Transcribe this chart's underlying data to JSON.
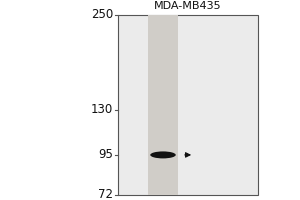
{
  "title": "MDA-MB435",
  "mw_markers": [
    250,
    130,
    95,
    72
  ],
  "band_mw": 95,
  "outer_left_bg": "#ffffff",
  "panel_bg": "#e8e8e8",
  "lane_color": "#c8c8c8",
  "band_color": "#111111",
  "marker_label_color": "#111111",
  "title_fontsize": 8,
  "marker_fontsize": 8.5,
  "arrow_color": "#111111",
  "panel_border_color": "#555555",
  "log_min_mw": 72,
  "log_max_mw": 250
}
